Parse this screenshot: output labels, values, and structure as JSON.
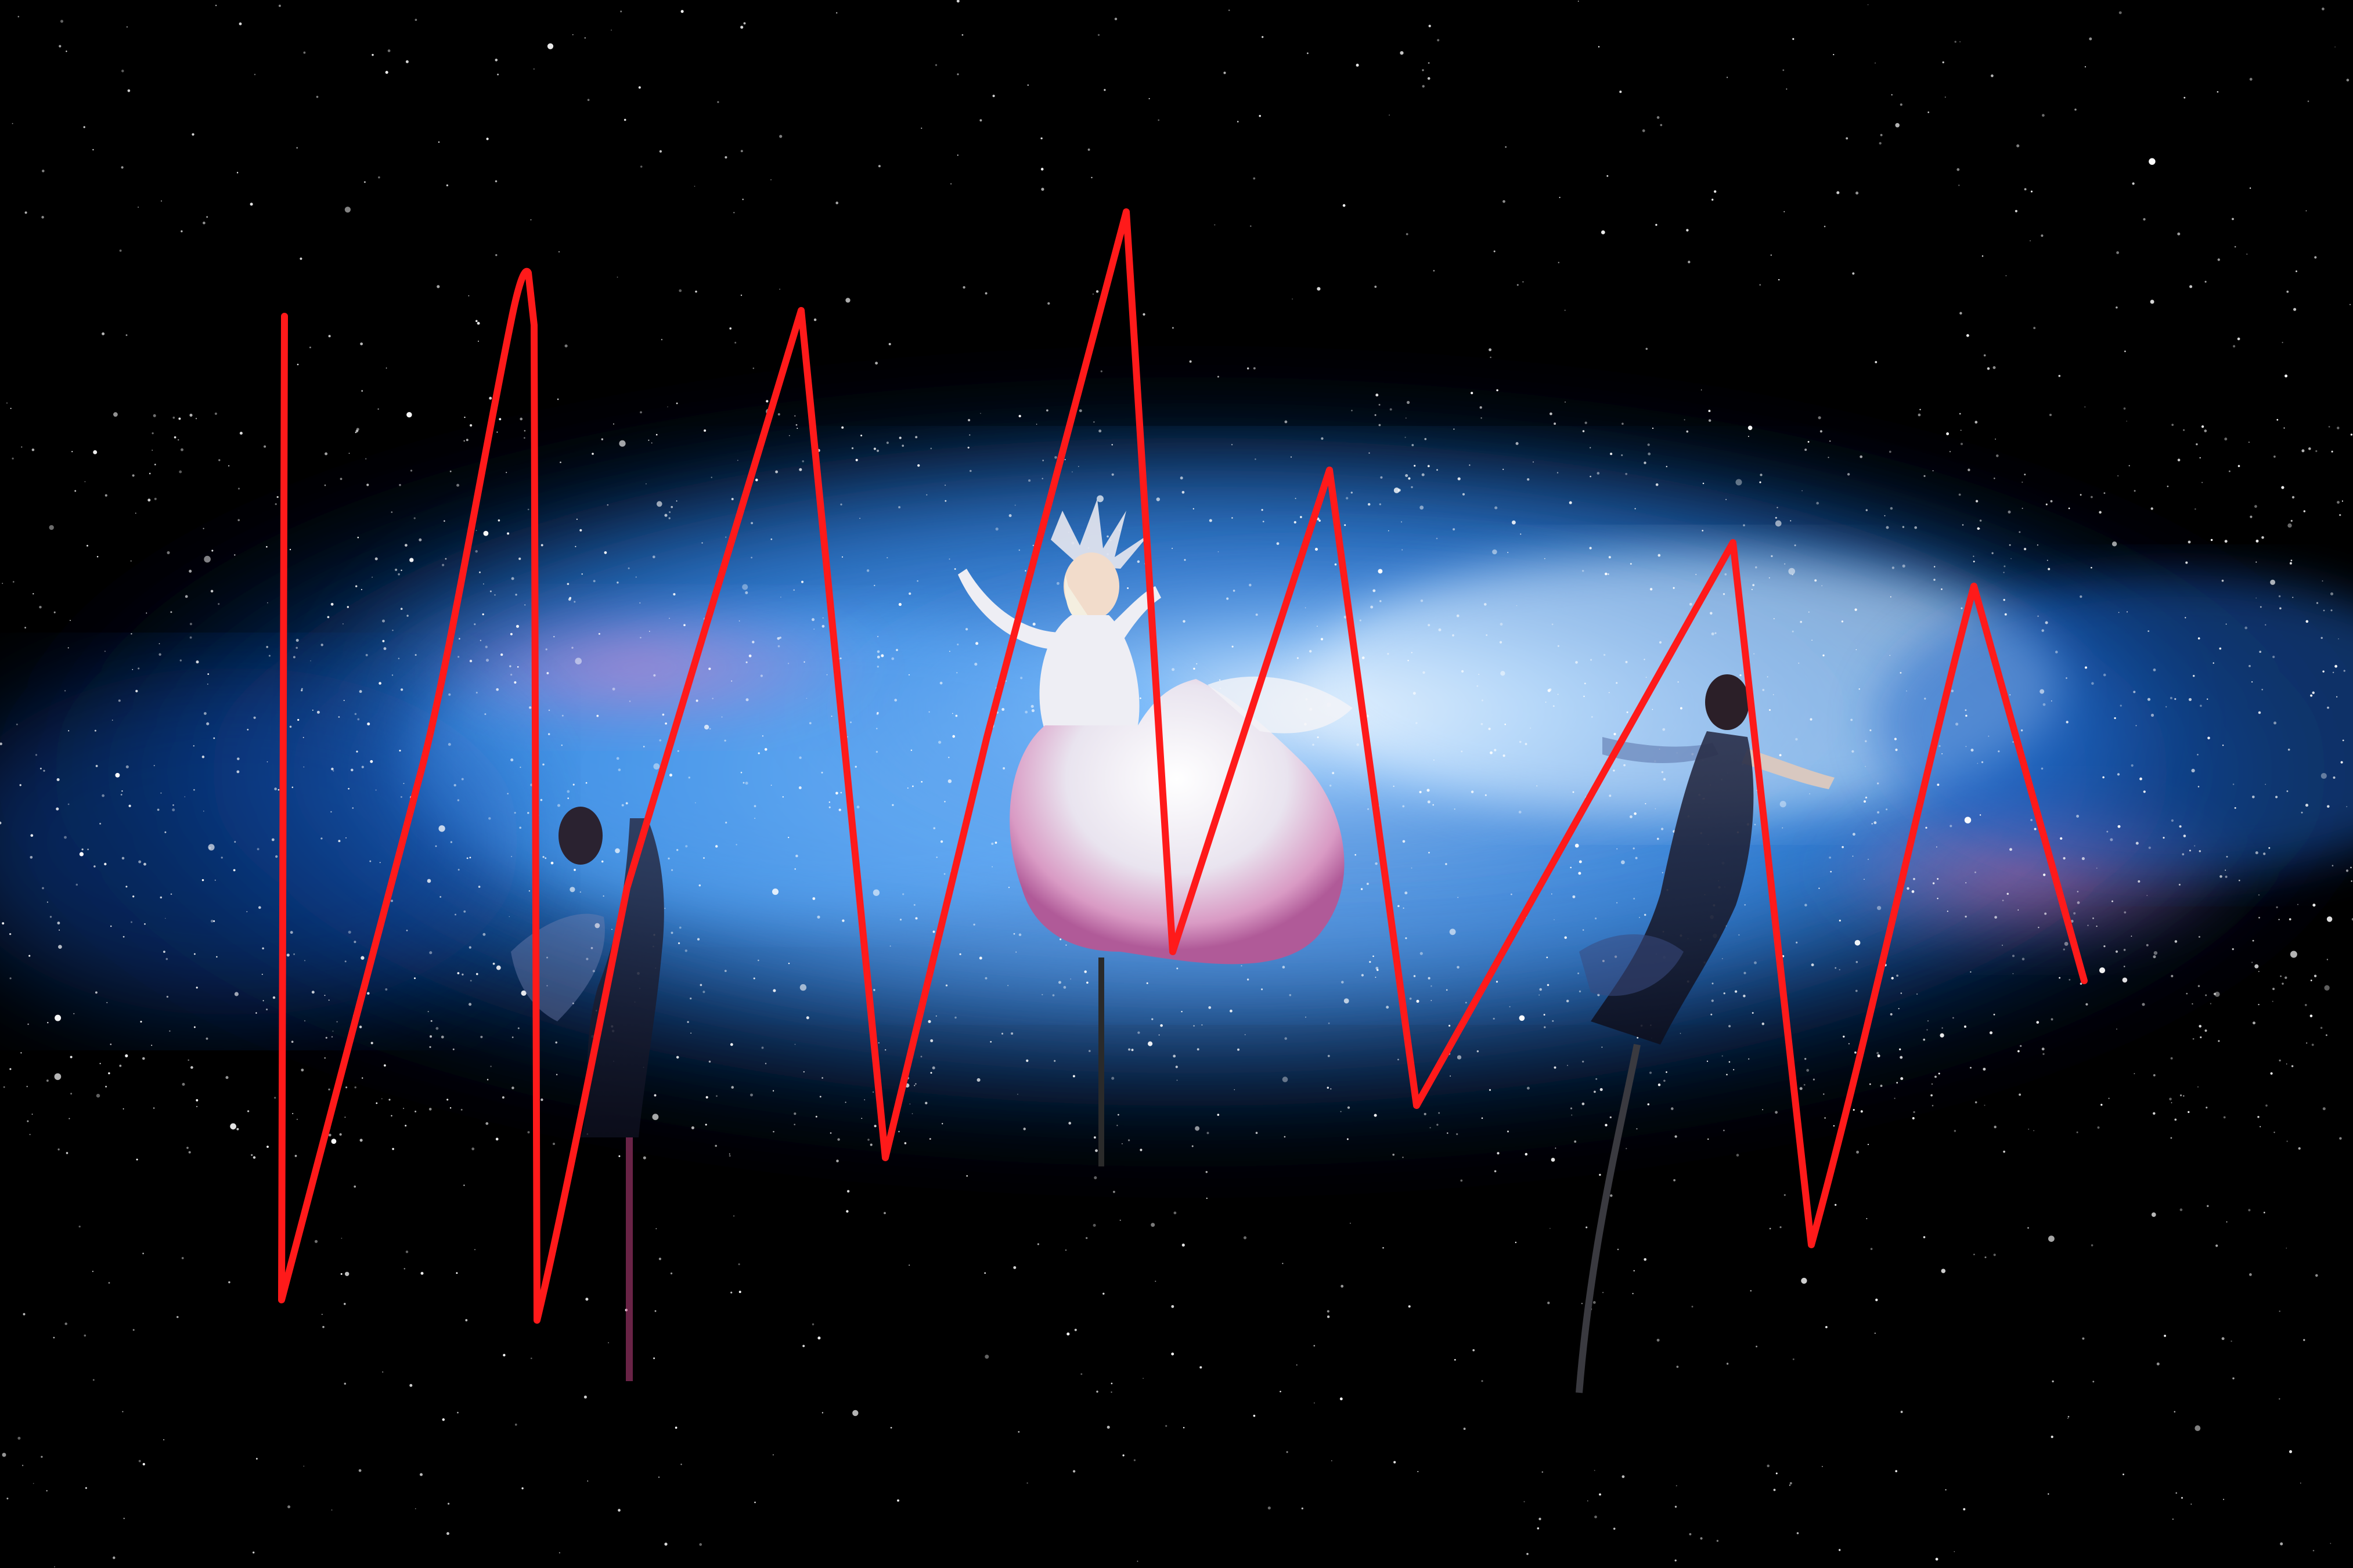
{
  "scene": {
    "description_free": true,
    "palette": {
      "background": "#000000",
      "nebula_core": "#e8f4ff",
      "nebula_mid": "#3a8fe8",
      "nebula_outer": "#0b3a8a",
      "nebula_pink": "#e05aa8",
      "annotation_stroke": "#ff1a1a"
    },
    "elements": [
      "starfield",
      "galaxy-nebula",
      "performer-left",
      "performer-center",
      "performer-right",
      "annotation-zigzag"
    ]
  }
}
